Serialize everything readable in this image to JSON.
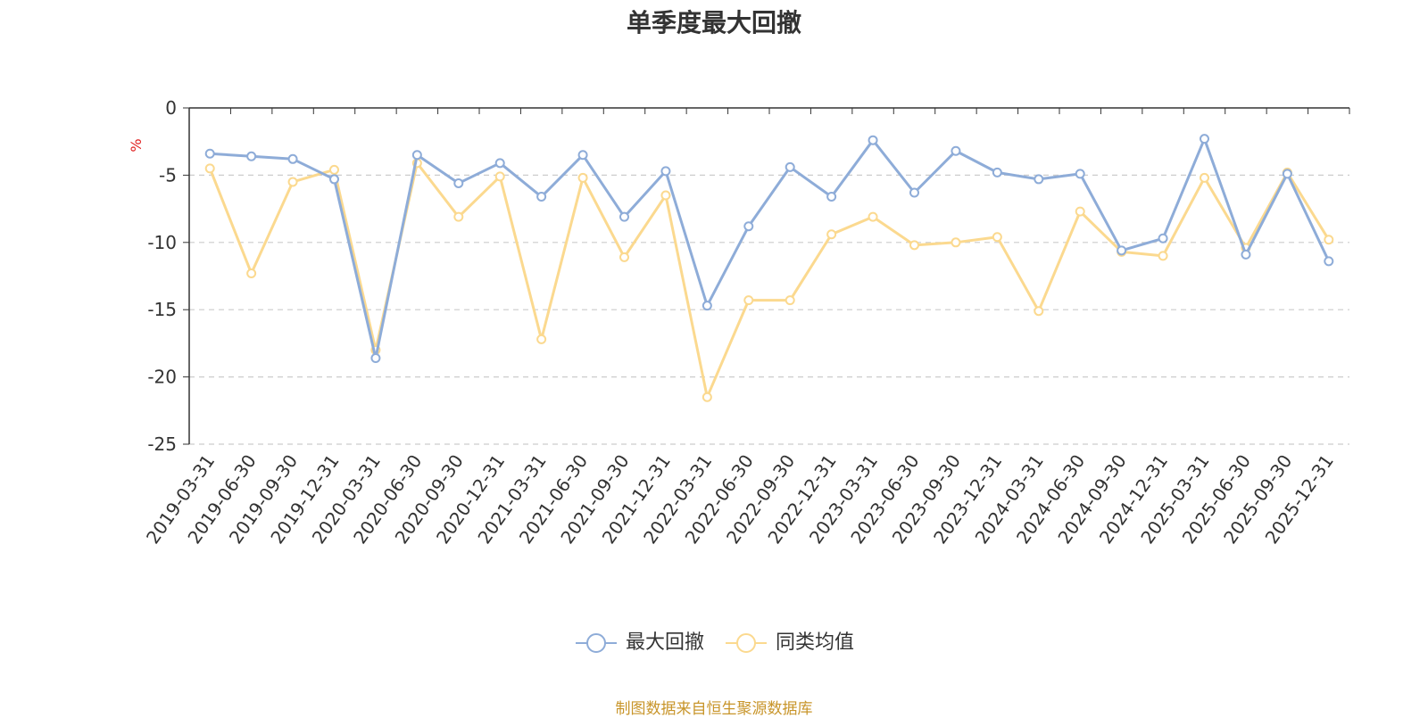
{
  "title": "单季度最大回撤",
  "source_note": "制图数据来自恒生聚源数据库",
  "chart_data": {
    "type": "line",
    "title": "单季度最大回撤",
    "ylabel": "%",
    "ylim": [
      -25,
      0
    ],
    "yticks": [
      0,
      -5,
      -10,
      -15,
      -20,
      -25
    ],
    "grid": true,
    "legend_position": "bottom-center",
    "categories": [
      "2019-03-31",
      "2019-06-30",
      "2019-09-30",
      "2019-12-31",
      "2020-03-31",
      "2020-06-30",
      "2020-09-30",
      "2020-12-31",
      "2021-03-31",
      "2021-06-30",
      "2021-09-30",
      "2021-12-31",
      "2022-03-31",
      "2022-06-30",
      "2022-09-30",
      "2022-12-31",
      "2023-03-31",
      "2023-06-30",
      "2023-09-30",
      "2023-12-31",
      "2024-03-31",
      "2024-06-30",
      "2024-09-30",
      "2024-12-31",
      "2025-03-31",
      "2025-06-30",
      "2025-09-30",
      "2025-12-31"
    ],
    "series": [
      {
        "name": "最大回撤",
        "color": "#8eacd8",
        "values": [
          -3.4,
          -3.6,
          -3.8,
          -5.3,
          -18.6,
          -3.5,
          -5.6,
          -4.1,
          -6.6,
          -3.5,
          -8.1,
          -4.7,
          -14.7,
          -8.8,
          -4.4,
          -6.6,
          -2.4,
          -6.3,
          -3.2,
          -4.8,
          -5.3,
          -4.9,
          -10.6,
          -9.7,
          -2.3,
          -10.9,
          -4.9,
          -11.4
        ]
      },
      {
        "name": "同类均值",
        "color": "#fbd98f",
        "values": [
          -4.5,
          -12.3,
          -5.5,
          -4.6,
          -18.0,
          -4.1,
          -8.1,
          -5.1,
          -17.2,
          -5.2,
          -11.1,
          -6.5,
          -21.5,
          -14.3,
          -14.3,
          -9.4,
          -8.1,
          -10.2,
          -10.0,
          -9.6,
          -15.1,
          -7.7,
          -10.7,
          -11.0,
          -5.2,
          -10.4,
          -4.8,
          -9.8
        ]
      }
    ]
  }
}
